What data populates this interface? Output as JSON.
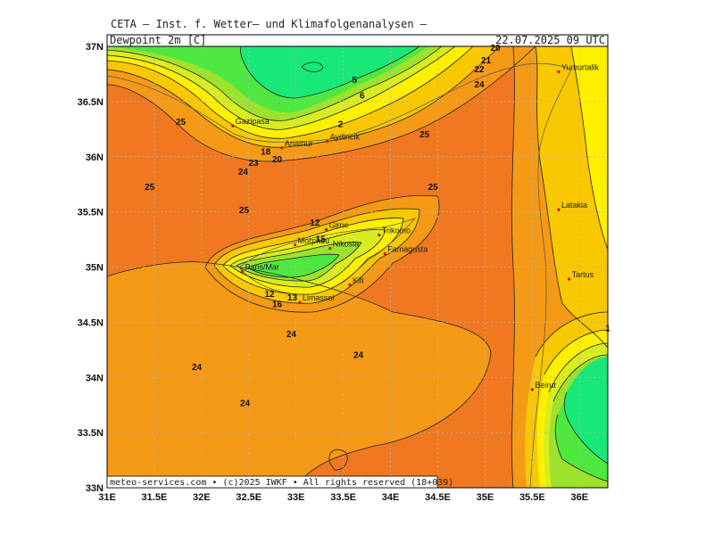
{
  "header": {
    "title": "CETA  –  Inst. f. Wetter– und Klimafolgenanalysen  –",
    "parameter": "Dewpoint 2m [C]",
    "valid_time": "22.07.2025 09 UTC"
  },
  "footer": "meteo-services.com • (c)2025 IWKF • All rights reserved (18+039)",
  "axes": {
    "x_ticks": [
      "31E",
      "31.5E",
      "32E",
      "32.5E",
      "33E",
      "33.5E",
      "34E",
      "34.5E",
      "35E",
      "35.5E",
      "36E"
    ],
    "y_ticks": [
      "37N",
      "36.5N",
      "36N",
      "35.5N",
      "35N",
      "34.5N",
      "34N",
      "33.5N",
      "33N"
    ]
  },
  "colors": {
    "band_25_26": "#f07820",
    "band_24_25": "#f59a16",
    "band_22_24": "#f8c800",
    "band_18_22": "#fff000",
    "band_12_18": "#d8ec22",
    "band_6_12": "#9de22c",
    "band_2_6": "#4ee840",
    "band_lt_2": "#18e878",
    "contour": "#222222",
    "grid": "#b4b4b4"
  },
  "cities": [
    {
      "name": "Gazipasa",
      "lon": 32.33,
      "lat": 36.28
    },
    {
      "name": "Anamur",
      "lon": 32.85,
      "lat": 36.08
    },
    {
      "name": "Aydincik",
      "lon": 33.33,
      "lat": 36.14
    },
    {
      "name": "Yumurtalik",
      "lon": 35.78,
      "lat": 36.77
    },
    {
      "name": "Latakia",
      "lon": 35.78,
      "lat": 35.52
    },
    {
      "name": "Tartus",
      "lon": 35.89,
      "lat": 34.89
    },
    {
      "name": "Beirut",
      "lon": 35.5,
      "lat": 33.89
    },
    {
      "name": "Girne",
      "lon": 33.32,
      "lat": 35.34
    },
    {
      "name": "Morphou",
      "lon": 32.99,
      "lat": 35.2
    },
    {
      "name": "Nikosia",
      "lon": 33.36,
      "lat": 35.17
    },
    {
      "name": "Trikomo",
      "lon": 33.88,
      "lat": 35.29
    },
    {
      "name": "Famagusta",
      "lon": 33.94,
      "lat": 35.12
    },
    {
      "name": "Paris/Mar",
      "lon": 32.43,
      "lat": 34.96
    },
    {
      "name": "Kiti",
      "lon": 33.57,
      "lat": 34.84
    },
    {
      "name": "Limassol",
      "lon": 33.04,
      "lat": 34.68
    }
  ],
  "contour_labels": [
    {
      "text": "25",
      "lon": 31.78,
      "lat": 36.32
    },
    {
      "text": "25",
      "lon": 31.45,
      "lat": 35.73
    },
    {
      "text": "25",
      "lon": 32.45,
      "lat": 35.52
    },
    {
      "text": "25",
      "lon": 34.36,
      "lat": 36.21
    },
    {
      "text": "25",
      "lon": 34.45,
      "lat": 35.73
    },
    {
      "text": "24",
      "lon": 32.44,
      "lat": 35.87
    },
    {
      "text": "24",
      "lon": 32.95,
      "lat": 34.4
    },
    {
      "text": "24",
      "lon": 33.66,
      "lat": 34.21
    },
    {
      "text": "24",
      "lon": 31.95,
      "lat": 34.1
    },
    {
      "text": "24",
      "lon": 32.46,
      "lat": 33.77
    },
    {
      "text": "24",
      "lon": 34.94,
      "lat": 36.66
    },
    {
      "text": "23",
      "lon": 32.55,
      "lat": 35.95
    },
    {
      "text": "22",
      "lon": 34.94,
      "lat": 36.8
    },
    {
      "text": "21",
      "lon": 35.01,
      "lat": 36.88
    },
    {
      "text": "20",
      "lon": 35.11,
      "lat": 36.99
    },
    {
      "text": "5",
      "lon": 33.62,
      "lat": 36.7
    },
    {
      "text": "6",
      "lon": 33.7,
      "lat": 36.56
    },
    {
      "text": "2",
      "lon": 33.47,
      "lat": 36.3
    },
    {
      "text": "12",
      "lon": 33.2,
      "lat": 35.41
    },
    {
      "text": "15",
      "lon": 33.26,
      "lat": 35.26
    },
    {
      "text": "12",
      "lon": 32.72,
      "lat": 34.76
    },
    {
      "text": "13",
      "lon": 32.96,
      "lat": 34.73
    },
    {
      "text": "16",
      "lon": 32.8,
      "lat": 34.67
    },
    {
      "text": "18",
      "lon": 32.68,
      "lat": 36.05
    },
    {
      "text": "20",
      "lon": 32.8,
      "lat": 35.98
    },
    {
      "text": "1",
      "lon": 36.3,
      "lat": 34.45
    }
  ]
}
